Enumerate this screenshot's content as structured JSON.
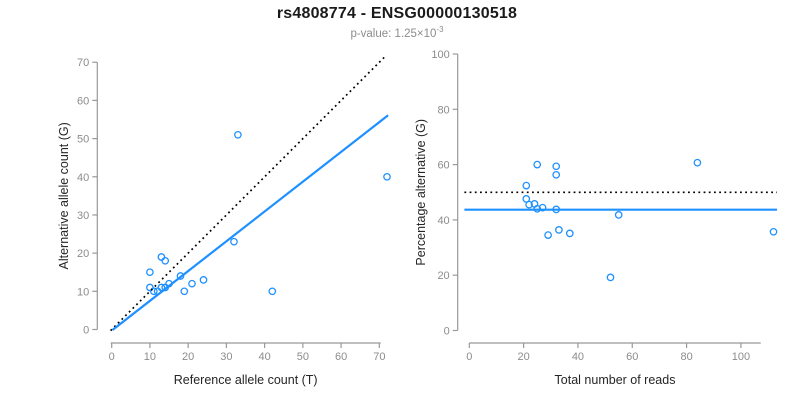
{
  "header": {
    "title": "rs4808774 - ENSG00000130518",
    "subtitle_base": "p-value: 1.25×10",
    "subtitle_exponent": "-3"
  },
  "colors": {
    "accent": "#1E90FF",
    "reference_line": "#000000",
    "axis_line": "#999999",
    "tick_label": "#8c8c8c",
    "axis_title": "#262626",
    "title": "#1a1a1a",
    "subtitle": "#8c8c8c",
    "background": "#ffffff"
  },
  "chart_data": [
    {
      "type": "scatter",
      "name": "allele-counts-plot",
      "xlabel": "Reference allele count (T)",
      "ylabel": "Alternative allele count (G)",
      "xlim": [
        0,
        70
      ],
      "ylim": [
        0,
        70
      ],
      "xticks": [
        0,
        10,
        20,
        30,
        40,
        50,
        60,
        70
      ],
      "yticks": [
        0,
        10,
        20,
        30,
        40,
        50,
        60,
        70
      ],
      "grid": false,
      "legend": "none",
      "points": [
        [
          10,
          11
        ],
        [
          11,
          10
        ],
        [
          12,
          10
        ],
        [
          13,
          11
        ],
        [
          14,
          11
        ],
        [
          15,
          12
        ],
        [
          10,
          15
        ],
        [
          13,
          19
        ],
        [
          14,
          18
        ],
        [
          18,
          14
        ],
        [
          19,
          10
        ],
        [
          21,
          12
        ],
        [
          24,
          13
        ],
        [
          32,
          23
        ],
        [
          33,
          51
        ],
        [
          42,
          10
        ],
        [
          72,
          40
        ]
      ],
      "lines": [
        {
          "name": "identity-line",
          "style": "dotted",
          "color_key": "reference_line",
          "slope": 1,
          "intercept": 0,
          "x_range": [
            -0.3,
            71.4
          ]
        },
        {
          "name": "regression-line",
          "style": "solid",
          "color_key": "accent",
          "slope": 0.78,
          "intercept": -0.3,
          "x_range": [
            0.2,
            72.3
          ]
        }
      ]
    },
    {
      "type": "scatter",
      "name": "percentage-alternative-plot",
      "xlabel": "Total number of reads",
      "ylabel": "Percentage alternative (G)",
      "xlim": [
        0,
        100
      ],
      "ylim": [
        0,
        100
      ],
      "xticks": [
        0,
        20,
        40,
        60,
        80,
        100
      ],
      "yticks": [
        0,
        20,
        40,
        60,
        80,
        100
      ],
      "grid": false,
      "legend": "none",
      "points": [
        [
          21,
          52.4
        ],
        [
          21,
          47.6
        ],
        [
          22,
          45.5
        ],
        [
          24,
          45.8
        ],
        [
          25,
          44.0
        ],
        [
          27,
          44.4
        ],
        [
          25,
          60.0
        ],
        [
          32,
          59.4
        ],
        [
          32,
          56.3
        ],
        [
          32,
          43.8
        ],
        [
          29,
          34.5
        ],
        [
          33,
          36.4
        ],
        [
          37,
          35.1
        ],
        [
          55,
          41.8
        ],
        [
          52,
          19.2
        ],
        [
          84,
          60.7
        ],
        [
          112,
          35.7
        ]
      ],
      "lines": [
        {
          "name": "expected-percentage-line",
          "style": "dotted",
          "color_key": "reference_line",
          "y": 50,
          "x_range": [
            -1.8,
            113.3
          ]
        },
        {
          "name": "mean-percentage-line",
          "style": "solid",
          "color_key": "accent",
          "y": 43.7,
          "x_range": [
            -1.8,
            113.3
          ]
        }
      ]
    }
  ]
}
